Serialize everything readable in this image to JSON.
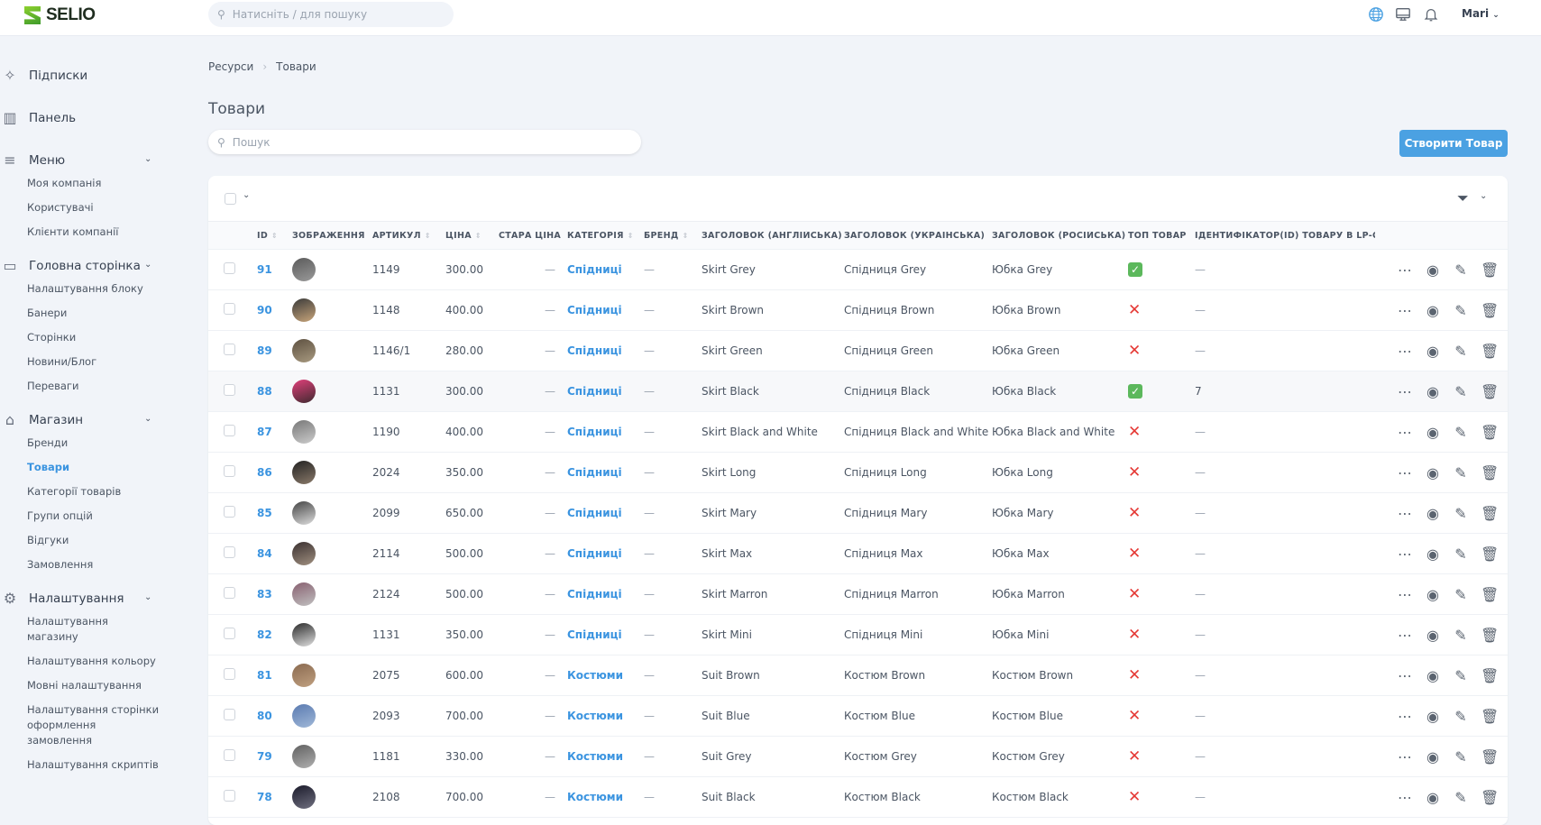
{
  "header": {
    "logo": "SELIO",
    "search_placeholder": "Натисніть / для пошуку",
    "user": "Mari",
    "accent": "#4ba1e2"
  },
  "sidebar": {
    "groups": [
      {
        "label": "Підписки",
        "icon": "sparkles-icon",
        "items": []
      },
      {
        "label": "Панель",
        "icon": "bar-chart-icon",
        "items": []
      },
      {
        "label": "Меню",
        "icon": "menu-icon",
        "items": [
          "Моя компанія",
          "Користувачі",
          "Клієнти компанії"
        ]
      },
      {
        "label": "Головна сторінка",
        "icon": "tray-icon",
        "items": [
          "Налаштування блоку",
          "Банери",
          "Сторінки",
          "Новини/Блог",
          "Переваги"
        ]
      },
      {
        "label": "Магазин",
        "icon": "shopping-bag-icon",
        "items": [
          "Бренди",
          "Товари",
          "Категорії товарів",
          "Групи опцій",
          "Відгуки",
          "Замовлення"
        ]
      },
      {
        "label": "Налаштування",
        "icon": "gear-icon",
        "items": [
          "Налаштування магазину",
          "Налаштування кольору",
          "Мовні налаштування",
          "Налаштування сторінки оформлення замовлення",
          "Налаштування скриптів"
        ]
      }
    ],
    "active": "Товари"
  },
  "breadcrumb": [
    "Ресурси",
    "Товари"
  ],
  "page_title": "Товари",
  "search_placeholder": "Пошук",
  "create_button": "Створити Товар",
  "table": {
    "columns": [
      "ID",
      "ЗОБРАЖЕННЯ",
      "АРТИКУЛ",
      "ЦІНА",
      "СТАРА ЦІНА",
      "КАТЕГОРІЯ",
      "БРЕНД",
      "ЗАГОЛОВОК (АНГЛІЙСЬКА)",
      "ЗАГОЛОВОК (УКРАЇНСЬКА)",
      "ЗАГОЛОВОК (РОСІЙСЬКА)",
      "ТОП ТОВАР",
      "ІДЕНТИФІКАТОР(ID) ТОВАРУ В LP-CRM"
    ],
    "rows": [
      {
        "id": "91",
        "sku": "1149",
        "price": "300.00",
        "old": "—",
        "cat": "Спідниці",
        "brand": "—",
        "en": "Skirt Grey",
        "uk": "Спідниця Grey",
        "ru": "Юбка Grey",
        "top": true,
        "lp": "—"
      },
      {
        "id": "90",
        "sku": "1148",
        "price": "400.00",
        "old": "—",
        "cat": "Спідниці",
        "brand": "—",
        "en": "Skirt Brown",
        "uk": "Спідниця Brown",
        "ru": "Юбка Brown",
        "top": false,
        "lp": "—"
      },
      {
        "id": "89",
        "sku": "1146/1",
        "price": "280.00",
        "old": "—",
        "cat": "Спідниці",
        "brand": "—",
        "en": "Skirt Green",
        "uk": "Спідниця Green",
        "ru": "Юбка Green",
        "top": false,
        "lp": "—"
      },
      {
        "id": "88",
        "sku": "1131",
        "price": "300.00",
        "old": "—",
        "cat": "Спідниці",
        "brand": "—",
        "en": "Skirt Black",
        "uk": "Спідниця Black",
        "ru": "Юбка Black",
        "top": true,
        "lp": "7"
      },
      {
        "id": "87",
        "sku": "1190",
        "price": "400.00",
        "old": "—",
        "cat": "Спідниці",
        "brand": "—",
        "en": "Skirt Black and White",
        "uk": "Спідниця Black and White",
        "ru": "Юбка Black and White",
        "top": false,
        "lp": "—"
      },
      {
        "id": "86",
        "sku": "2024",
        "price": "350.00",
        "old": "—",
        "cat": "Спідниці",
        "brand": "—",
        "en": "Skirt Long",
        "uk": "Спідниця Long",
        "ru": "Юбка Long",
        "top": false,
        "lp": "—"
      },
      {
        "id": "85",
        "sku": "2099",
        "price": "650.00",
        "old": "—",
        "cat": "Спідниці",
        "brand": "—",
        "en": "Skirt Mary",
        "uk": "Спідниця Mary",
        "ru": "Юбка Mary",
        "top": false,
        "lp": "—"
      },
      {
        "id": "84",
        "sku": "2114",
        "price": "500.00",
        "old": "—",
        "cat": "Спідниці",
        "brand": "—",
        "en": "Skirt Max",
        "uk": "Спідниця Max",
        "ru": "Юбка Max",
        "top": false,
        "lp": "—"
      },
      {
        "id": "83",
        "sku": "2124",
        "price": "500.00",
        "old": "—",
        "cat": "Спідниці",
        "brand": "—",
        "en": "Skirt Marron",
        "uk": "Спідниця Marron",
        "ru": "Юбка Marron",
        "top": false,
        "lp": "—"
      },
      {
        "id": "82",
        "sku": "1131",
        "price": "350.00",
        "old": "—",
        "cat": "Спідниці",
        "brand": "—",
        "en": "Skirt Mini",
        "uk": "Спідниця Mini",
        "ru": "Юбка Mini",
        "top": false,
        "lp": "—"
      },
      {
        "id": "81",
        "sku": "2075",
        "price": "600.00",
        "old": "—",
        "cat": "Костюми",
        "brand": "—",
        "en": "Suit Brown",
        "uk": "Костюм Brown",
        "ru": "Костюм Brown",
        "top": false,
        "lp": "—"
      },
      {
        "id": "80",
        "sku": "2093",
        "price": "700.00",
        "old": "—",
        "cat": "Костюми",
        "brand": "—",
        "en": "Suit Blue",
        "uk": "Костюм Blue",
        "ru": "Костюм Blue",
        "top": false,
        "lp": "—"
      },
      {
        "id": "79",
        "sku": "1181",
        "price": "330.00",
        "old": "—",
        "cat": "Костюми",
        "brand": "—",
        "en": "Suit Grey",
        "uk": "Костюм Grey",
        "ru": "Костюм Grey",
        "top": false,
        "lp": "—"
      },
      {
        "id": "78",
        "sku": "2108",
        "price": "700.00",
        "old": "—",
        "cat": "Костюми",
        "brand": "—",
        "en": "Suit Black",
        "uk": "Костюм Black",
        "ru": "Костюм Black",
        "top": false,
        "lp": "—"
      }
    ]
  }
}
